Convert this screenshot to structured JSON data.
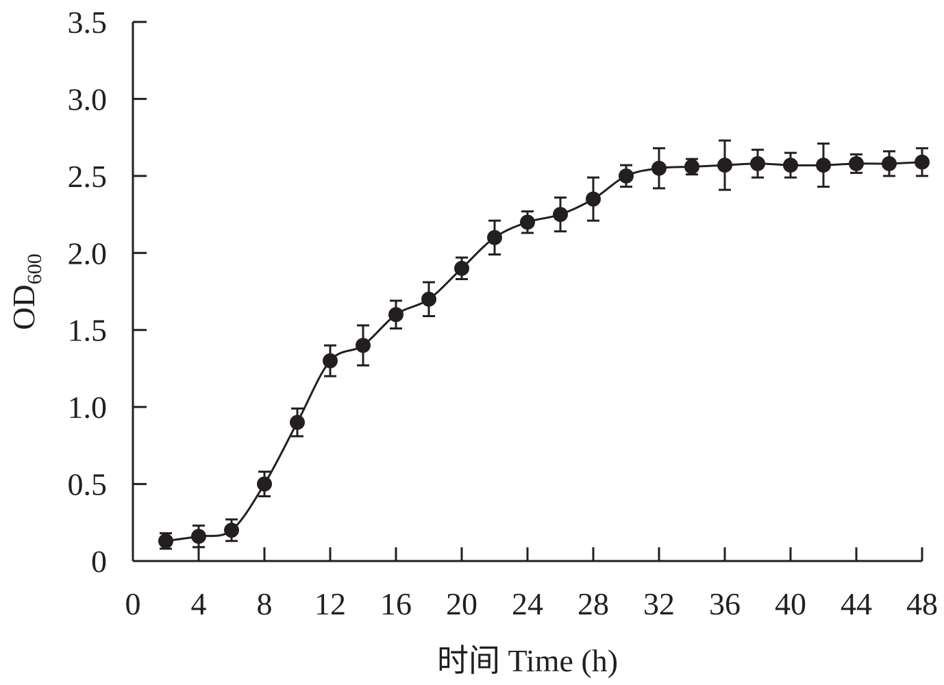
{
  "chart_data": {
    "type": "line",
    "xlabel": "时间 Time (h)",
    "ylabel_main": "OD",
    "ylabel_sub": "600",
    "xlim": [
      0,
      48
    ],
    "ylim": [
      0,
      3.5
    ],
    "xticks": [
      0,
      4,
      8,
      12,
      16,
      20,
      24,
      28,
      32,
      36,
      40,
      44,
      48
    ],
    "yticks": [
      0,
      0.5,
      1.0,
      1.5,
      2.0,
      2.5,
      3.0,
      3.5
    ],
    "ytick_labels": [
      "0",
      "0.5",
      "1.0",
      "1.5",
      "2.0",
      "2.5",
      "3.0",
      "3.5"
    ],
    "grid": false,
    "color": "#231f20",
    "series": [
      {
        "x": [
          2,
          4,
          6,
          8,
          10,
          12,
          14,
          16,
          18,
          20,
          22,
          24,
          26,
          28,
          30,
          32,
          34,
          36,
          38,
          40,
          42,
          44,
          46,
          48
        ],
        "y": [
          0.13,
          0.16,
          0.2,
          0.5,
          0.9,
          1.3,
          1.4,
          1.6,
          1.7,
          1.9,
          2.1,
          2.2,
          2.25,
          2.35,
          2.5,
          2.55,
          2.56,
          2.57,
          2.58,
          2.57,
          2.57,
          2.58,
          2.58,
          2.59
        ],
        "error": [
          0.05,
          0.07,
          0.07,
          0.08,
          0.09,
          0.1,
          0.13,
          0.09,
          0.11,
          0.07,
          0.11,
          0.07,
          0.11,
          0.14,
          0.07,
          0.13,
          0.05,
          0.16,
          0.09,
          0.08,
          0.14,
          0.06,
          0.08,
          0.09
        ]
      }
    ]
  }
}
